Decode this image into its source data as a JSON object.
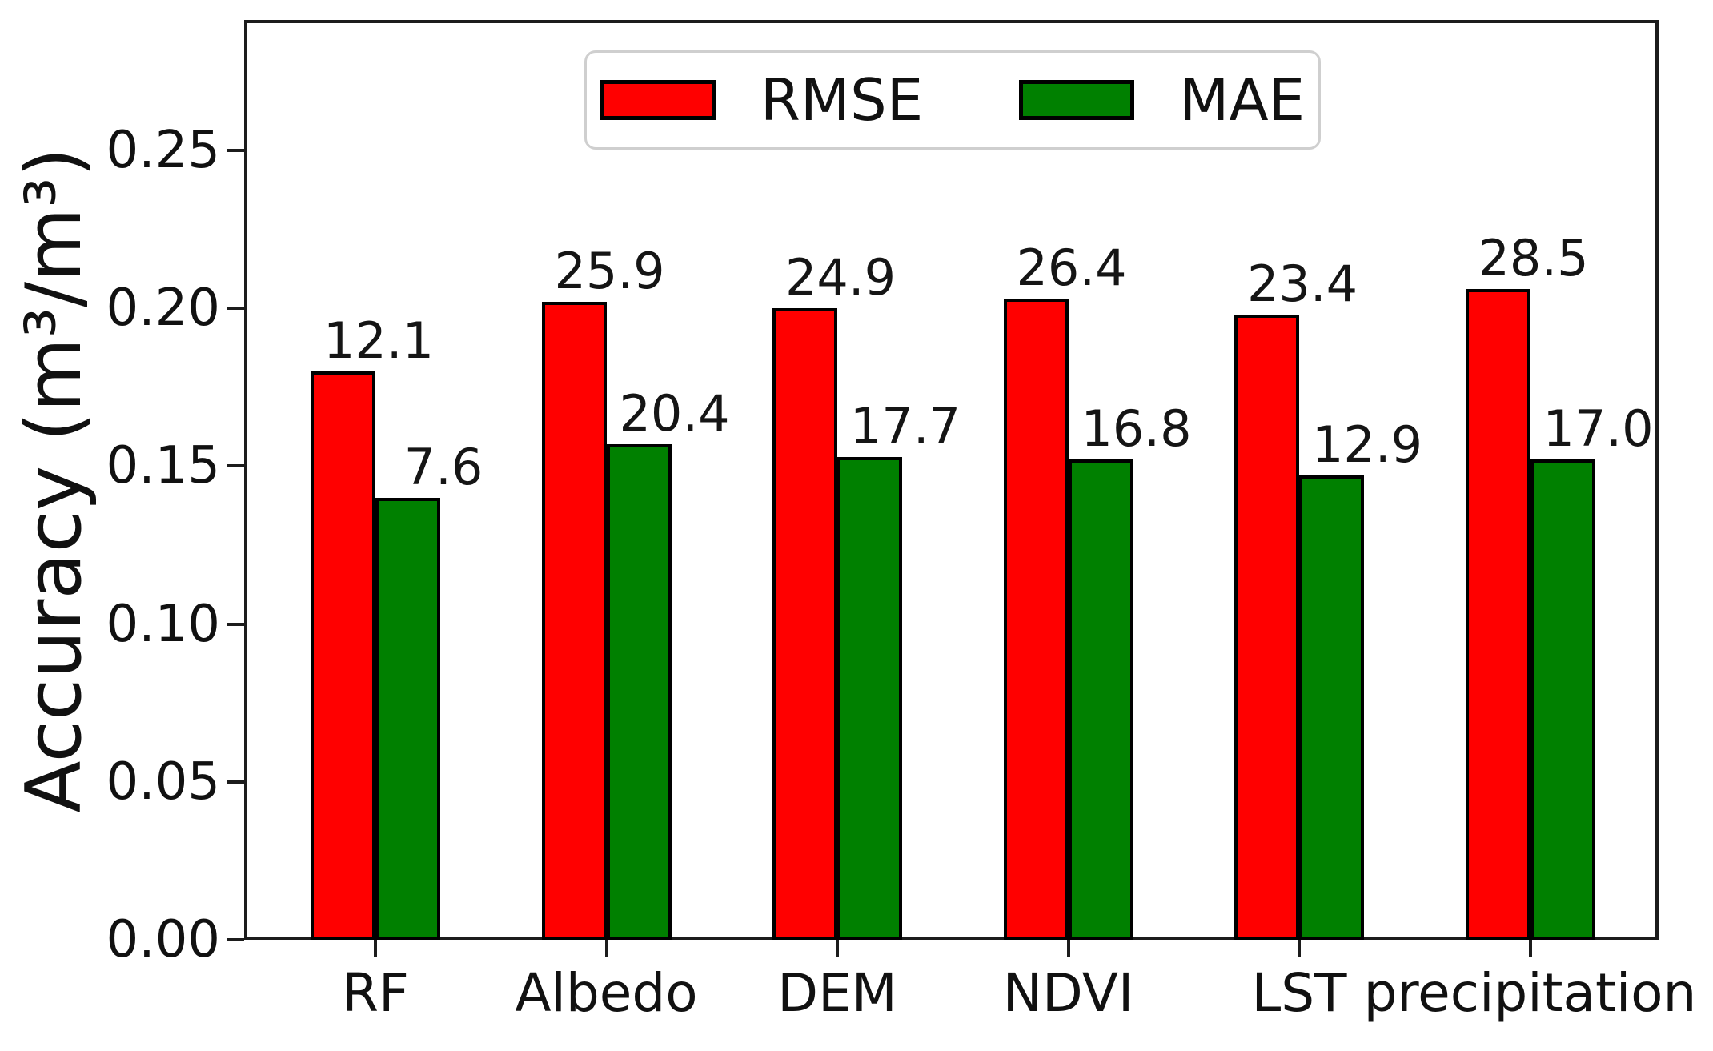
{
  "figure": {
    "background": "#ffffff",
    "spine_color": "#1c1c1c",
    "bar_edge_color": "#000000"
  },
  "chart_data": {
    "type": "bar",
    "title": "",
    "xlabel": "",
    "ylabel": "Accuracy (m³/m³)",
    "categories": [
      "RF",
      "Albedo",
      "DEM",
      "NDVI",
      "LST",
      "precipitation"
    ],
    "series": [
      {
        "name": "RMSE",
        "color": "#ff0000",
        "values": [
          0.18,
          0.202,
          0.2,
          0.203,
          0.198,
          0.206
        ],
        "labels": [
          "12.1",
          "25.9",
          "24.9",
          "26.4",
          "23.4",
          "28.5"
        ]
      },
      {
        "name": "MAE",
        "color": "#008000",
        "values": [
          0.14,
          0.157,
          0.153,
          0.152,
          0.147,
          0.152
        ],
        "labels": [
          "7.6",
          "20.4",
          "17.7",
          "16.8",
          "12.9",
          "17.0"
        ]
      }
    ],
    "yticks": [
      "0.00",
      "0.05",
      "0.10",
      "0.15",
      "0.20",
      "0.25"
    ],
    "ylim": [
      0,
      0.2913
    ],
    "grid": false,
    "legend": {
      "position": "upper center",
      "entries": [
        "RMSE",
        "MAE"
      ]
    }
  }
}
